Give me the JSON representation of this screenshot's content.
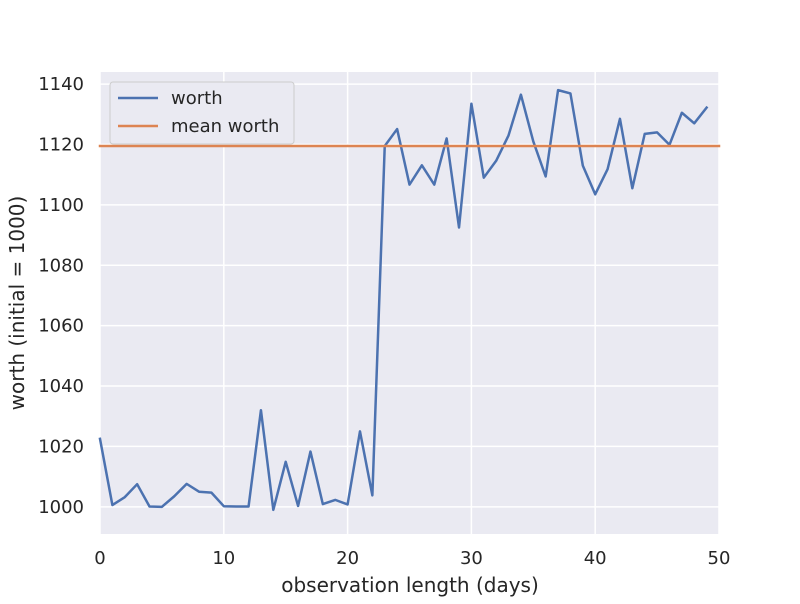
{
  "chart_data": {
    "type": "line",
    "title": "",
    "xlabel": "observation length (days)",
    "ylabel": "worth (initial = 1000)",
    "xlim": [
      0,
      50
    ],
    "ylim": [
      991,
      1144
    ],
    "xticks": [
      0,
      10,
      20,
      30,
      40,
      50
    ],
    "yticks": [
      1000,
      1020,
      1040,
      1060,
      1080,
      1100,
      1120,
      1140
    ],
    "grid": true,
    "legend_position": "top-left",
    "series": [
      {
        "name": "worth",
        "color": "#4c72b0",
        "x": [
          0,
          1,
          2,
          3,
          4,
          5,
          6,
          7,
          8,
          9,
          10,
          11,
          12,
          13,
          14,
          15,
          16,
          17,
          18,
          19,
          20,
          21,
          22,
          23,
          24,
          25,
          26,
          27,
          28,
          29,
          30,
          31,
          32,
          33,
          34,
          35,
          36,
          37,
          38,
          39,
          40,
          41,
          42,
          43,
          44,
          45,
          46,
          47,
          48,
          49
        ],
        "values": [
          1022.5,
          1000.6,
          1003.2,
          1007.5,
          1000.1,
          1000.0,
          1003.5,
          1007.6,
          1005.0,
          1004.7,
          1000.2,
          1000.1,
          1000.1,
          1032.0,
          999.0,
          1014.9,
          1000.3,
          1018.3,
          1000.9,
          1002.3,
          1000.8,
          1025.0,
          1003.8,
          1119.5,
          1125.1,
          1106.7,
          1113.1,
          1106.7,
          1122.0,
          1092.5,
          1133.5,
          1109.0,
          1114.6,
          1123.0,
          1136.5,
          1121.0,
          1109.4,
          1138.0,
          1136.9,
          1113.0,
          1103.5,
          1111.8,
          1128.5,
          1105.5,
          1123.5,
          1124.0,
          1119.9,
          1130.5,
          1127.0,
          1132.2
        ]
      },
      {
        "name": "mean worth",
        "color": "#dd8452",
        "x": [
          0,
          50
        ],
        "values": [
          1119.5,
          1119.5
        ]
      }
    ]
  },
  "colors": {
    "plot_background": "#eaeaf2",
    "grid": "#ffffff",
    "text": "#262626"
  }
}
